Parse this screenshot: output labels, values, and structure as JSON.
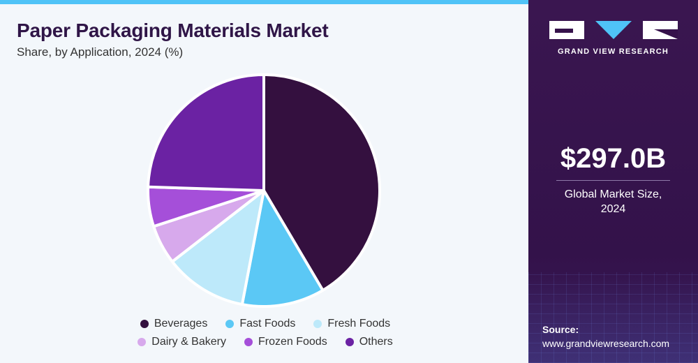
{
  "header": {
    "title": "Paper Packaging Materials Market",
    "subtitle": "Share, by Application, 2024 (%)"
  },
  "chart_data": {
    "type": "pie",
    "categories": [
      "Beverages",
      "Fast Foods",
      "Fresh Foods",
      "Dairy & Bakery",
      "Frozen Foods",
      "Others"
    ],
    "values": [
      41.5,
      11.5,
      11.5,
      5.5,
      5.5,
      24.5
    ],
    "colors": [
      "#34103f",
      "#5bc8f5",
      "#bde9fa",
      "#d7a9ec",
      "#a54fd9",
      "#6b22a3"
    ],
    "start": "12 o'clock, clockwise",
    "legend": "bottom",
    "title": "Paper Packaging Materials Market",
    "subtitle": "Share, by Application, 2024 (%)"
  },
  "legend": {
    "rows": [
      [
        {
          "label": "Beverages",
          "color": "#34103f"
        },
        {
          "label": "Fast Foods",
          "color": "#5bc8f5"
        },
        {
          "label": "Fresh Foods",
          "color": "#bde9fa"
        }
      ],
      [
        {
          "label": "Dairy & Bakery",
          "color": "#d7a9ec"
        },
        {
          "label": "Frozen Foods",
          "color": "#a54fd9"
        },
        {
          "label": "Others",
          "color": "#6b22a3"
        }
      ]
    ]
  },
  "sidebar": {
    "brand": "GRAND VIEW RESEARCH",
    "market_value": "$297.0B",
    "market_label": "Global Market Size,\n2024",
    "source_label": "Source:",
    "source_url": "www.grandviewresearch.com",
    "colors": {
      "background": "#36124b",
      "text": "#ffffff",
      "logo_accent": "#4fc3f7"
    }
  }
}
